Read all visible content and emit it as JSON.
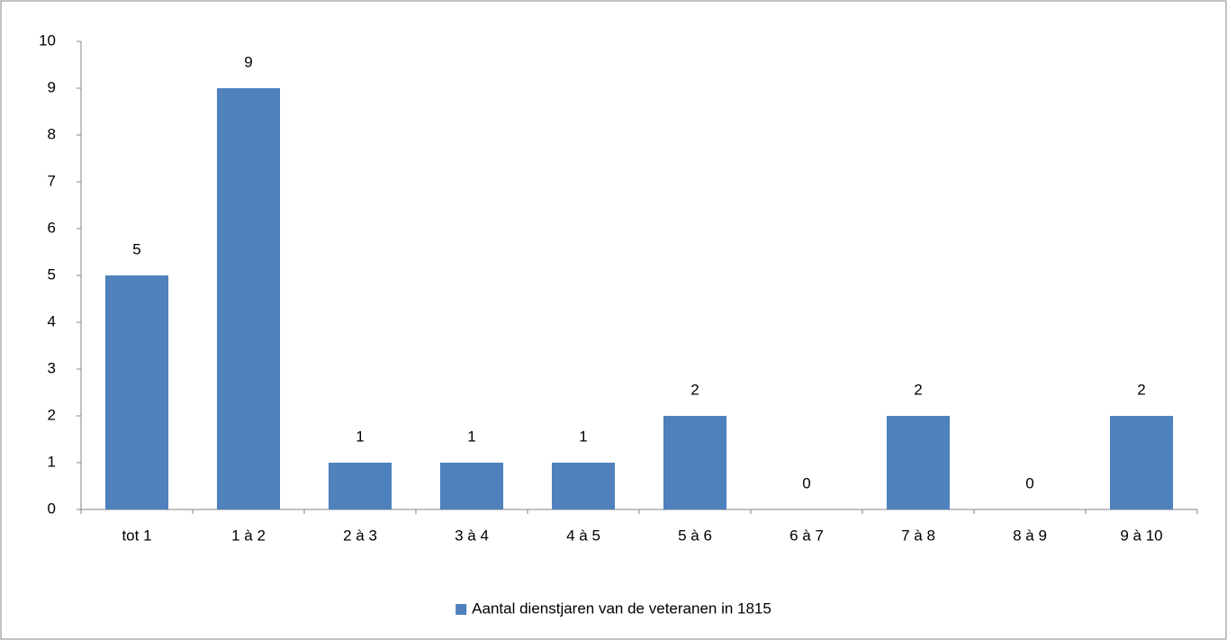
{
  "chart_data": {
    "type": "bar",
    "categories": [
      "tot 1",
      "1 à 2",
      "2 à 3",
      "3 à 4",
      "4 à 5",
      "5 à 6",
      "6 à 7",
      "7 à 8",
      "8 à 9",
      "9 à 10"
    ],
    "series": [
      {
        "name": "Aantal dienstjaren van de veteranen in 1815",
        "color": "#4f81bd",
        "values": [
          5,
          9,
          1,
          1,
          1,
          2,
          0,
          2,
          0,
          2
        ]
      }
    ],
    "ylim": [
      0,
      10
    ],
    "yticks": [
      0,
      1,
      2,
      3,
      4,
      5,
      6,
      7,
      8,
      9,
      10
    ],
    "grid": false,
    "data_labels": true,
    "legend": "bottom"
  }
}
